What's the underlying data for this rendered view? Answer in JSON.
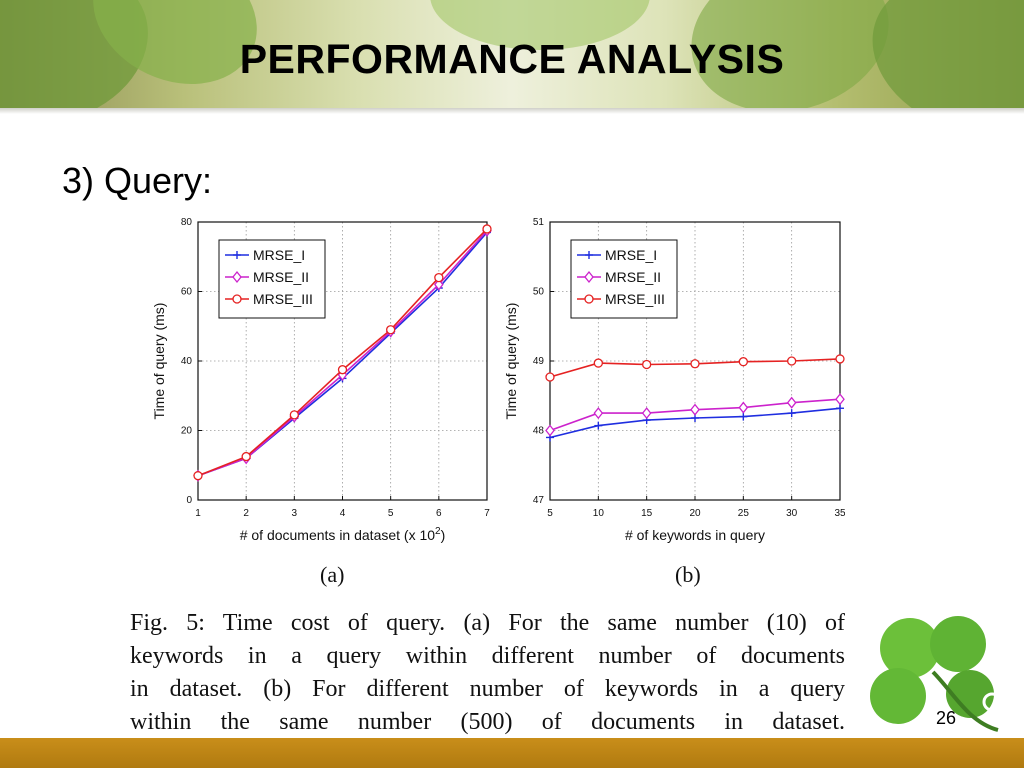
{
  "slide": {
    "title": "PERFORMANCE ANALYSIS",
    "subheading": "3) Query:",
    "slide_number": "26"
  },
  "figure": {
    "sublabel_a": "(a)",
    "sublabel_b": "(b)",
    "caption_lines": [
      "Fig. 5: Time cost of query. (a) For the same number (10) of",
      "keywords in a query within different number of documents",
      "in dataset. (b) For different number of keywords in a query",
      "within the same number (500) of documents in dataset."
    ]
  },
  "colors": {
    "MRSE_I": "#1f2ee0",
    "MRSE_II": "#cc22cc",
    "MRSE_III": "#e52222"
  },
  "chart_data": [
    {
      "type": "line",
      "title": "",
      "xlabel": "# of documents in dataset (x 10",
      "xlabel_superscript": "2",
      "xlabel_suffix": ")",
      "ylabel": "Time of query (ms)",
      "x": [
        1,
        2,
        3,
        4,
        5,
        6,
        7
      ],
      "xlim": [
        1,
        7
      ],
      "ylim": [
        0,
        80
      ],
      "xticks": [
        "1",
        "2",
        "3",
        "4",
        "5",
        "6",
        "7"
      ],
      "yticks": [
        "0",
        "20",
        "40",
        "60",
        "80"
      ],
      "grid": true,
      "legend_position": "top-left",
      "series": [
        {
          "name": "MRSE_I",
          "marker": "plus",
          "values": [
            7,
            12,
            23.5,
            35,
            48,
            61,
            77
          ]
        },
        {
          "name": "MRSE_II",
          "marker": "diamond",
          "values": [
            7,
            12,
            24,
            36,
            48.5,
            62,
            77.5
          ]
        },
        {
          "name": "MRSE_III",
          "marker": "circle",
          "values": [
            7,
            12.5,
            24.5,
            37.5,
            49,
            64,
            78
          ]
        }
      ]
    },
    {
      "type": "line",
      "title": "",
      "xlabel": "# of keywords in query",
      "ylabel": "Time of query (ms)",
      "x": [
        5,
        10,
        15,
        20,
        25,
        30,
        35
      ],
      "xlim": [
        5,
        35
      ],
      "ylim": [
        47,
        51
      ],
      "xticks": [
        "5",
        "10",
        "15",
        "20",
        "25",
        "30",
        "35"
      ],
      "yticks": [
        "47",
        "48",
        "49",
        "50",
        "51"
      ],
      "grid": true,
      "legend_position": "top-left",
      "series": [
        {
          "name": "MRSE_I",
          "marker": "plus",
          "values": [
            47.9,
            48.07,
            48.15,
            48.18,
            48.2,
            48.25,
            48.32
          ]
        },
        {
          "name": "MRSE_II",
          "marker": "diamond",
          "values": [
            48.0,
            48.25,
            48.25,
            48.3,
            48.33,
            48.4,
            48.45
          ]
        },
        {
          "name": "MRSE_III",
          "marker": "circle",
          "values": [
            48.77,
            48.97,
            48.95,
            48.96,
            48.99,
            49.0,
            49.03
          ]
        }
      ]
    }
  ]
}
